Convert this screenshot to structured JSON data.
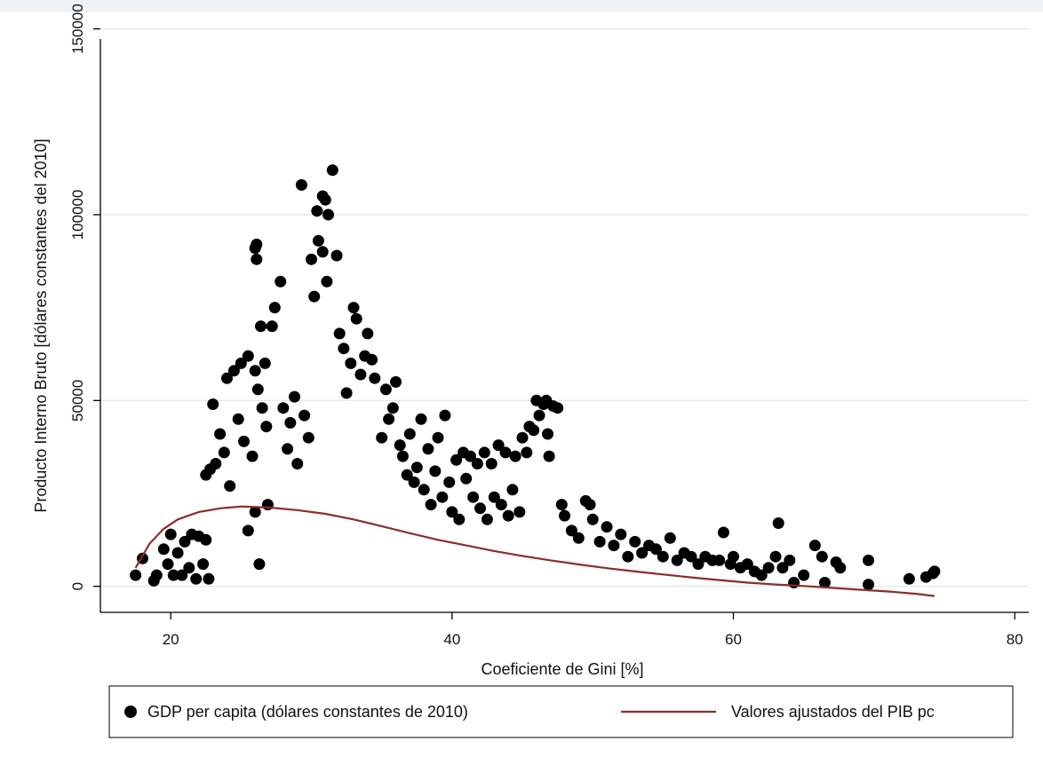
{
  "colors": {
    "background": "#ffffff",
    "top_band": "#eef4f6",
    "gridline": "#dce8ec",
    "axis": "#000000",
    "points": "#000000",
    "fit_line": "#8b2c2c",
    "legend_border": "#000000"
  },
  "chart_data": {
    "type": "scatter",
    "title": "",
    "xlabel": "Coeficiente de Gini [%]",
    "ylabel": "Producto Interno Bruto [dólares constantes del 2010]",
    "xlim": [
      15,
      81
    ],
    "ylim": [
      -7000,
      153000
    ],
    "x_ticks": [
      20,
      40,
      60,
      80
    ],
    "x_tick_labels": [
      "20",
      "40",
      "60",
      "80"
    ],
    "y_ticks": [
      0,
      50000,
      100000,
      150000
    ],
    "y_tick_labels": [
      "0",
      "50000",
      "100000",
      "150000"
    ],
    "grid": "horizontal",
    "legend_position": "bottom",
    "series": [
      {
        "name": "GDP per capita (dólares constantes de 2010)",
        "type": "scatter",
        "marker": "circle",
        "points": [
          [
            17.5,
            3000
          ],
          [
            18.0,
            7500
          ],
          [
            18.8,
            1500
          ],
          [
            19.0,
            3000
          ],
          [
            19.5,
            10000
          ],
          [
            19.8,
            6000
          ],
          [
            20.0,
            14000
          ],
          [
            20.2,
            3000
          ],
          [
            20.5,
            9000
          ],
          [
            20.8,
            3000
          ],
          [
            21.0,
            12000
          ],
          [
            21.3,
            5000
          ],
          [
            21.5,
            14000
          ],
          [
            21.8,
            2000
          ],
          [
            22.0,
            13500
          ],
          [
            22.3,
            6000
          ],
          [
            22.5,
            12500
          ],
          [
            22.7,
            2000
          ],
          [
            22.5,
            30000
          ],
          [
            22.8,
            31500
          ],
          [
            23.0,
            49000
          ],
          [
            23.2,
            33000
          ],
          [
            23.5,
            41000
          ],
          [
            23.8,
            36000
          ],
          [
            24.0,
            56000
          ],
          [
            24.2,
            27000
          ],
          [
            24.5,
            58000
          ],
          [
            24.8,
            45000
          ],
          [
            25.0,
            60000
          ],
          [
            25.2,
            39000
          ],
          [
            25.5,
            62000
          ],
          [
            25.8,
            35000
          ],
          [
            26.0,
            58000
          ],
          [
            26.2,
            53000
          ],
          [
            26.4,
            70000
          ],
          [
            26.5,
            48000
          ],
          [
            26.7,
            60000
          ],
          [
            26.8,
            43000
          ],
          [
            26.9,
            22000
          ],
          [
            26.0,
            20000
          ],
          [
            25.5,
            15000
          ],
          [
            26.3,
            6000
          ],
          [
            26.0,
            91000
          ],
          [
            26.1,
            92000
          ],
          [
            26.1,
            88000
          ],
          [
            27.2,
            70000
          ],
          [
            27.4,
            75000
          ],
          [
            27.8,
            82000
          ],
          [
            28.0,
            48000
          ],
          [
            28.3,
            37000
          ],
          [
            28.5,
            44000
          ],
          [
            28.8,
            51000
          ],
          [
            29.0,
            33000
          ],
          [
            29.3,
            108000
          ],
          [
            29.5,
            46000
          ],
          [
            29.8,
            40000
          ],
          [
            30.0,
            88000
          ],
          [
            30.2,
            78000
          ],
          [
            30.4,
            101000
          ],
          [
            30.5,
            93000
          ],
          [
            30.8,
            90000
          ],
          [
            30.8,
            105000
          ],
          [
            31.0,
            104000
          ],
          [
            31.1,
            82000
          ],
          [
            31.2,
            100000
          ],
          [
            31.5,
            112000
          ],
          [
            31.8,
            89000
          ],
          [
            32.0,
            68000
          ],
          [
            32.3,
            64000
          ],
          [
            32.5,
            52000
          ],
          [
            32.8,
            60000
          ],
          [
            33.0,
            75000
          ],
          [
            33.2,
            72000
          ],
          [
            33.5,
            57000
          ],
          [
            33.8,
            62000
          ],
          [
            34.0,
            68000
          ],
          [
            34.3,
            61000
          ],
          [
            34.5,
            56000
          ],
          [
            35.0,
            40000
          ],
          [
            35.3,
            53000
          ],
          [
            35.5,
            45000
          ],
          [
            35.8,
            48000
          ],
          [
            36.0,
            55000
          ],
          [
            36.3,
            38000
          ],
          [
            36.5,
            35000
          ],
          [
            36.8,
            30000
          ],
          [
            37.0,
            41000
          ],
          [
            37.3,
            28000
          ],
          [
            37.5,
            32000
          ],
          [
            37.8,
            45000
          ],
          [
            38.0,
            26000
          ],
          [
            38.3,
            37000
          ],
          [
            38.5,
            22000
          ],
          [
            38.8,
            31000
          ],
          [
            39.0,
            40000
          ],
          [
            39.3,
            24000
          ],
          [
            39.5,
            46000
          ],
          [
            39.8,
            28000
          ],
          [
            40.0,
            20000
          ],
          [
            40.3,
            34000
          ],
          [
            40.5,
            18000
          ],
          [
            40.8,
            36000
          ],
          [
            41.0,
            29000
          ],
          [
            41.3,
            35000
          ],
          [
            41.5,
            24000
          ],
          [
            41.8,
            33000
          ],
          [
            42.0,
            21000
          ],
          [
            42.3,
            36000
          ],
          [
            42.5,
            18000
          ],
          [
            42.8,
            33000
          ],
          [
            43.0,
            24000
          ],
          [
            43.3,
            38000
          ],
          [
            43.5,
            22000
          ],
          [
            43.8,
            36000
          ],
          [
            44.0,
            19000
          ],
          [
            44.3,
            26000
          ],
          [
            44.5,
            35000
          ],
          [
            44.8,
            20000
          ],
          [
            45.0,
            40000
          ],
          [
            45.3,
            36000
          ],
          [
            45.5,
            43000
          ],
          [
            45.8,
            42000
          ],
          [
            46.0,
            50000
          ],
          [
            46.2,
            46000
          ],
          [
            46.5,
            49000
          ],
          [
            46.7,
            50000
          ],
          [
            46.8,
            41000
          ],
          [
            46.9,
            35000
          ],
          [
            47.2,
            48500
          ],
          [
            47.5,
            48000
          ],
          [
            47.8,
            22000
          ],
          [
            48.0,
            19000
          ],
          [
            48.5,
            15000
          ],
          [
            49.0,
            13000
          ],
          [
            49.5,
            23000
          ],
          [
            49.8,
            22000
          ],
          [
            50.0,
            18000
          ],
          [
            50.5,
            12000
          ],
          [
            51.0,
            16000
          ],
          [
            51.5,
            11000
          ],
          [
            52.0,
            14000
          ],
          [
            52.5,
            8000
          ],
          [
            53.0,
            12000
          ],
          [
            53.5,
            9000
          ],
          [
            54.0,
            11000
          ],
          [
            54.5,
            10000
          ],
          [
            55.0,
            8000
          ],
          [
            55.5,
            13000
          ],
          [
            56.0,
            7000
          ],
          [
            56.5,
            9000
          ],
          [
            57.0,
            8000
          ],
          [
            57.5,
            6000
          ],
          [
            58.0,
            8000
          ],
          [
            58.5,
            7000
          ],
          [
            59.0,
            7000
          ],
          [
            59.3,
            14500
          ],
          [
            59.8,
            6000
          ],
          [
            60.0,
            8000
          ],
          [
            60.5,
            5000
          ],
          [
            61.0,
            6000
          ],
          [
            61.5,
            4000
          ],
          [
            62.0,
            3000
          ],
          [
            62.5,
            5000
          ],
          [
            63.0,
            8000
          ],
          [
            63.2,
            17000
          ],
          [
            63.5,
            5000
          ],
          [
            64.0,
            7000
          ],
          [
            64.3,
            1000
          ],
          [
            65.0,
            3000
          ],
          [
            65.8,
            11000
          ],
          [
            66.3,
            8000
          ],
          [
            66.5,
            1000
          ],
          [
            67.3,
            6500
          ],
          [
            67.6,
            5000
          ],
          [
            69.6,
            7000
          ],
          [
            69.6,
            500
          ],
          [
            72.5,
            2000
          ],
          [
            73.7,
            2500
          ],
          [
            74.2,
            3500
          ],
          [
            74.3,
            4000
          ]
        ]
      },
      {
        "name": "Valores ajustados del PIB pc",
        "type": "line",
        "points": [
          [
            17.5,
            5000
          ],
          [
            18.5,
            11500
          ],
          [
            19.5,
            15500
          ],
          [
            20.5,
            18000
          ],
          [
            22.0,
            20000
          ],
          [
            23.5,
            21000
          ],
          [
            25.0,
            21500
          ],
          [
            27.0,
            21200
          ],
          [
            29.0,
            20500
          ],
          [
            31.0,
            19500
          ],
          [
            33.0,
            18000
          ],
          [
            35.0,
            16200
          ],
          [
            37.0,
            14300
          ],
          [
            39.0,
            12500
          ],
          [
            41.0,
            11000
          ],
          [
            43.0,
            9500
          ],
          [
            45.0,
            8200
          ],
          [
            47.0,
            7000
          ],
          [
            49.0,
            5900
          ],
          [
            51.0,
            4900
          ],
          [
            53.0,
            4000
          ],
          [
            55.0,
            3200
          ],
          [
            57.0,
            2400
          ],
          [
            59.0,
            1700
          ],
          [
            61.0,
            1000
          ],
          [
            63.0,
            500
          ],
          [
            65.0,
            100
          ],
          [
            67.0,
            -400
          ],
          [
            69.0,
            -900
          ],
          [
            71.0,
            -1400
          ],
          [
            73.0,
            -2000
          ],
          [
            74.3,
            -2600
          ]
        ]
      }
    ]
  },
  "legend": {
    "items": [
      {
        "label": "GDP per capita (dólares constantes de 2010)",
        "marker": "circle"
      },
      {
        "label": "Valores ajustados del PIB pc",
        "marker": "line"
      }
    ]
  }
}
